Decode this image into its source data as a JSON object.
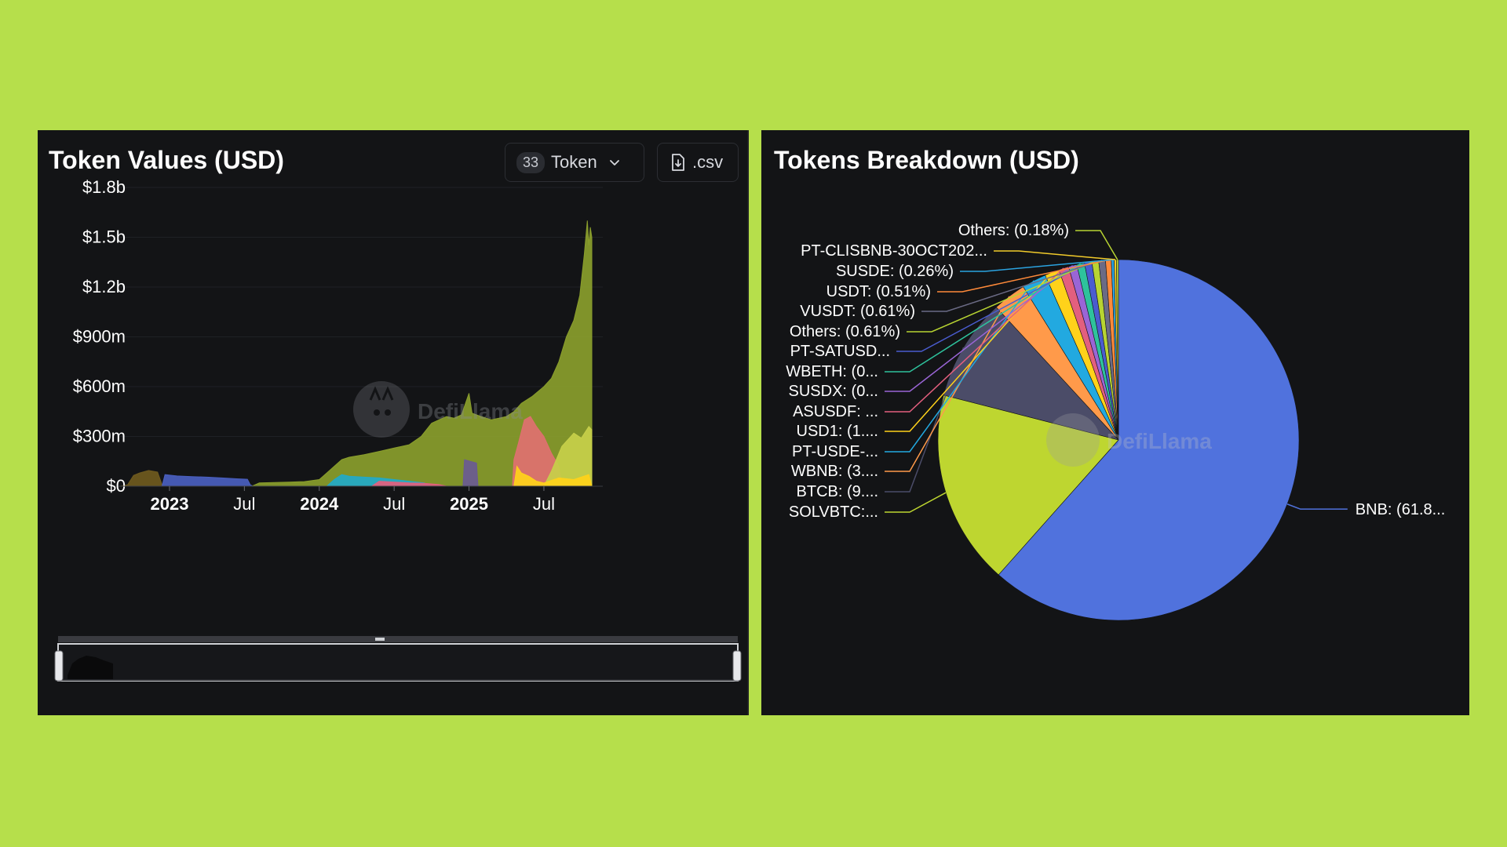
{
  "left": {
    "title": "Token Values (USD)",
    "token_selector": {
      "count": "33",
      "label": "Token"
    },
    "csv_button": {
      "label": ".csv"
    },
    "watermark": "DefiLlama"
  },
  "right": {
    "title": "Tokens Breakdown (USD)",
    "watermark": "DefiLlama"
  },
  "colors": {
    "page_bg": "#b6df4b",
    "panel_bg": "#131416",
    "bnb": "#5072dd",
    "solvbtc": "#bed630",
    "btcb": "#4b4c68",
    "wbnb": "#ff9a4a",
    "pt_usde": "#22a9e0",
    "usd1": "#ffd21a",
    "asusdf": "#e35f7e",
    "olive_area": "#8a9e2c"
  },
  "chart_data": [
    {
      "type": "area",
      "title": "Token Values (USD)",
      "y_ticks": [
        "$0",
        "$300m",
        "$600m",
        "$900m",
        "$1.2b",
        "$1.5b",
        "$1.8b"
      ],
      "ylim": [
        0,
        1800
      ],
      "x_ticks": [
        {
          "label": "2023",
          "t": 2023.0,
          "bold": true
        },
        {
          "label": "Jul",
          "t": 2023.5,
          "bold": false
        },
        {
          "label": "2024",
          "t": 2024.0,
          "bold": true
        },
        {
          "label": "Jul",
          "t": 2024.5,
          "bold": false
        },
        {
          "label": "2025",
          "t": 2025.0,
          "bold": true
        },
        {
          "label": "Jul",
          "t": 2025.5,
          "bold": false
        }
      ],
      "xlim": [
        2022.67,
        2025.82
      ],
      "series": [
        {
          "color": "#6f5a1e",
          "points": [
            [
              2022.67,
              0
            ],
            [
              2022.72,
              8
            ],
            [
              2022.76,
              65
            ],
            [
              2022.8,
              80
            ],
            [
              2022.86,
              95
            ],
            [
              2022.92,
              85
            ],
            [
              2022.95,
              10
            ],
            [
              2022.96,
              0
            ]
          ]
        },
        {
          "color": "#4a5fc0",
          "points": [
            [
              2022.95,
              0
            ],
            [
              2022.97,
              70
            ],
            [
              2023.05,
              62
            ],
            [
              2023.15,
              58
            ],
            [
              2023.25,
              55
            ],
            [
              2023.35,
              50
            ],
            [
              2023.45,
              45
            ],
            [
              2023.52,
              42
            ],
            [
              2023.54,
              8
            ],
            [
              2023.56,
              0
            ]
          ]
        },
        {
          "color": "#8a9e2c",
          "points": [
            [
              2023.55,
              0
            ],
            [
              2023.6,
              20
            ],
            [
              2023.7,
              22
            ],
            [
              2023.8,
              25
            ],
            [
              2023.9,
              28
            ],
            [
              2024.0,
              40
            ],
            [
              2024.05,
              80
            ],
            [
              2024.1,
              120
            ],
            [
              2024.15,
              160
            ],
            [
              2024.2,
              175
            ],
            [
              2024.3,
              190
            ],
            [
              2024.4,
              210
            ],
            [
              2024.5,
              230
            ],
            [
              2024.6,
              250
            ],
            [
              2024.68,
              300
            ],
            [
              2024.75,
              380
            ],
            [
              2024.8,
              400
            ],
            [
              2024.85,
              420
            ],
            [
              2024.9,
              410
            ],
            [
              2024.95,
              430
            ],
            [
              2025.0,
              560
            ],
            [
              2025.02,
              440
            ],
            [
              2025.08,
              420
            ],
            [
              2025.15,
              400
            ],
            [
              2025.25,
              420
            ],
            [
              2025.3,
              450
            ],
            [
              2025.35,
              500
            ],
            [
              2025.42,
              540
            ],
            [
              2025.5,
              600
            ],
            [
              2025.55,
              650
            ],
            [
              2025.6,
              750
            ],
            [
              2025.65,
              900
            ],
            [
              2025.7,
              1000
            ],
            [
              2025.74,
              1150
            ],
            [
              2025.77,
              1400
            ],
            [
              2025.79,
              1600
            ],
            [
              2025.8,
              1450
            ],
            [
              2025.81,
              1560
            ],
            [
              2025.82,
              1500
            ],
            [
              2025.82,
              0
            ]
          ]
        },
        {
          "color": "#e07070",
          "points": [
            [
              2025.29,
              0
            ],
            [
              2025.3,
              160
            ],
            [
              2025.33,
              260
            ],
            [
              2025.37,
              400
            ],
            [
              2025.41,
              420
            ],
            [
              2025.45,
              360
            ],
            [
              2025.5,
              300
            ],
            [
              2025.55,
              200
            ],
            [
              2025.6,
              120
            ],
            [
              2025.62,
              0
            ]
          ]
        },
        {
          "color": "#c7cf4a",
          "points": [
            [
              2025.5,
              0
            ],
            [
              2025.55,
              90
            ],
            [
              2025.62,
              240
            ],
            [
              2025.7,
              320
            ],
            [
              2025.75,
              290
            ],
            [
              2025.8,
              360
            ],
            [
              2025.82,
              340
            ],
            [
              2025.82,
              0
            ]
          ]
        },
        {
          "color": "#6a5a92",
          "points": [
            [
              2024.96,
              0
            ],
            [
              2024.97,
              160
            ],
            [
              2025.01,
              150
            ],
            [
              2025.05,
              140
            ],
            [
              2025.06,
              0
            ]
          ]
        },
        {
          "color": "#22a9c8",
          "points": [
            [
              2024.05,
              0
            ],
            [
              2024.1,
              40
            ],
            [
              2024.15,
              70
            ],
            [
              2024.2,
              60
            ],
            [
              2024.3,
              55
            ],
            [
              2024.4,
              50
            ],
            [
              2024.5,
              40
            ],
            [
              2024.6,
              30
            ],
            [
              2024.7,
              20
            ],
            [
              2024.75,
              0
            ]
          ]
        },
        {
          "color": "#e35f7e",
          "points": [
            [
              2024.35,
              0
            ],
            [
              2024.4,
              30
            ],
            [
              2024.5,
              25
            ],
            [
              2024.6,
              20
            ],
            [
              2024.7,
              18
            ],
            [
              2024.8,
              10
            ],
            [
              2024.85,
              0
            ]
          ]
        },
        {
          "color": "#ffd21a",
          "points": [
            [
              2025.3,
              0
            ],
            [
              2025.32,
              120
            ],
            [
              2025.35,
              80
            ],
            [
              2025.4,
              60
            ],
            [
              2025.45,
              30
            ],
            [
              2025.5,
              20
            ],
            [
              2025.6,
              50
            ],
            [
              2025.7,
              40
            ],
            [
              2025.8,
              70
            ],
            [
              2025.82,
              0
            ]
          ]
        }
      ]
    },
    {
      "type": "pie",
      "title": "Tokens Breakdown (USD)",
      "slices": [
        {
          "label": "BNB: (61.8...",
          "value": 61.8,
          "color": "#5072dd"
        },
        {
          "label": "SOLVBTC:...",
          "value": 17.5,
          "color": "#bed630"
        },
        {
          "label": "BTCB: (9....",
          "value": 9.2,
          "color": "#4b4c68"
        },
        {
          "label": "WBNB: (3....",
          "value": 3.0,
          "color": "#ff9a4a"
        },
        {
          "label": "PT-USDE-...",
          "value": 2.2,
          "color": "#22a9e0"
        },
        {
          "label": "USD1: (1....",
          "value": 1.3,
          "color": "#ffd21a"
        },
        {
          "label": "ASUSDF: ...",
          "value": 0.9,
          "color": "#e35f7e"
        },
        {
          "label": "SUSDX: (0...",
          "value": 0.75,
          "color": "#9a65d6"
        },
        {
          "label": "WBETH: (0...",
          "value": 0.7,
          "color": "#2ec29c"
        },
        {
          "label": "PT-SATUSD...",
          "value": 0.66,
          "color": "#4a5ccf"
        },
        {
          "label": "Others: (0.61%)",
          "value": 0.61,
          "color": "#b8d432"
        },
        {
          "label": "VUSDT: (0.61%)",
          "value": 0.61,
          "color": "#6b6b85"
        },
        {
          "label": "USDT: (0.51%)",
          "value": 0.51,
          "color": "#ff8a3a"
        },
        {
          "label": "SUSDE: (0.26%)",
          "value": 0.26,
          "color": "#2ba3e0"
        },
        {
          "label": "PT-CLISBNB-30OCT202...",
          "value": 0.2,
          "color": "#f2cb2a"
        },
        {
          "label": "Others: (0.18%)",
          "value": 0.18,
          "color": "#b8d432"
        }
      ]
    }
  ]
}
